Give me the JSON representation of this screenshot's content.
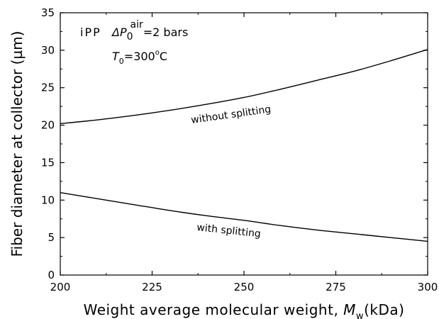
{
  "chart_data": {
    "type": "line",
    "xlabel": "Weight average molecular weight, ",
    "xlabel_symbol": "M",
    "xlabel_sub": "w",
    "xlabel_unit": "(kDa)",
    "ylabel": "Fiber diameter at collector (µm)",
    "xlim": [
      200,
      300
    ],
    "ylim": [
      0,
      35
    ],
    "xticks": [
      200,
      225,
      250,
      275,
      300
    ],
    "xtick_labels": [
      "200",
      "225",
      "250",
      "275",
      "300"
    ],
    "yticks": [
      0,
      5,
      10,
      15,
      20,
      25,
      30,
      35
    ],
    "ytick_labels": [
      "0",
      "5",
      "10",
      "15",
      "20",
      "25",
      "30",
      "35"
    ],
    "grid": false,
    "annotations": {
      "material": "iPP",
      "pressure_symbol": "ΔP",
      "pressure_sub": "0",
      "pressure_sup": "air",
      "pressure_value": "=2 bars",
      "temp_symbol": "T",
      "temp_sub": "0",
      "temp_value": "=300",
      "temp_sup": "o",
      "temp_unit": "C"
    },
    "series": [
      {
        "name": "without splitting",
        "x": [
          200,
          210,
          220,
          230,
          240,
          250,
          260,
          270,
          280,
          290,
          300
        ],
        "values": [
          20.2,
          20.7,
          21.3,
          22.0,
          22.8,
          23.7,
          24.8,
          26.0,
          27.2,
          28.6,
          30.1
        ]
      },
      {
        "name": "with splitting",
        "x": [
          200,
          210,
          220,
          230,
          240,
          250,
          260,
          270,
          280,
          290,
          300
        ],
        "values": [
          11.0,
          10.2,
          9.4,
          8.6,
          7.9,
          7.3,
          6.6,
          6.0,
          5.5,
          5.0,
          4.5
        ]
      }
    ]
  }
}
